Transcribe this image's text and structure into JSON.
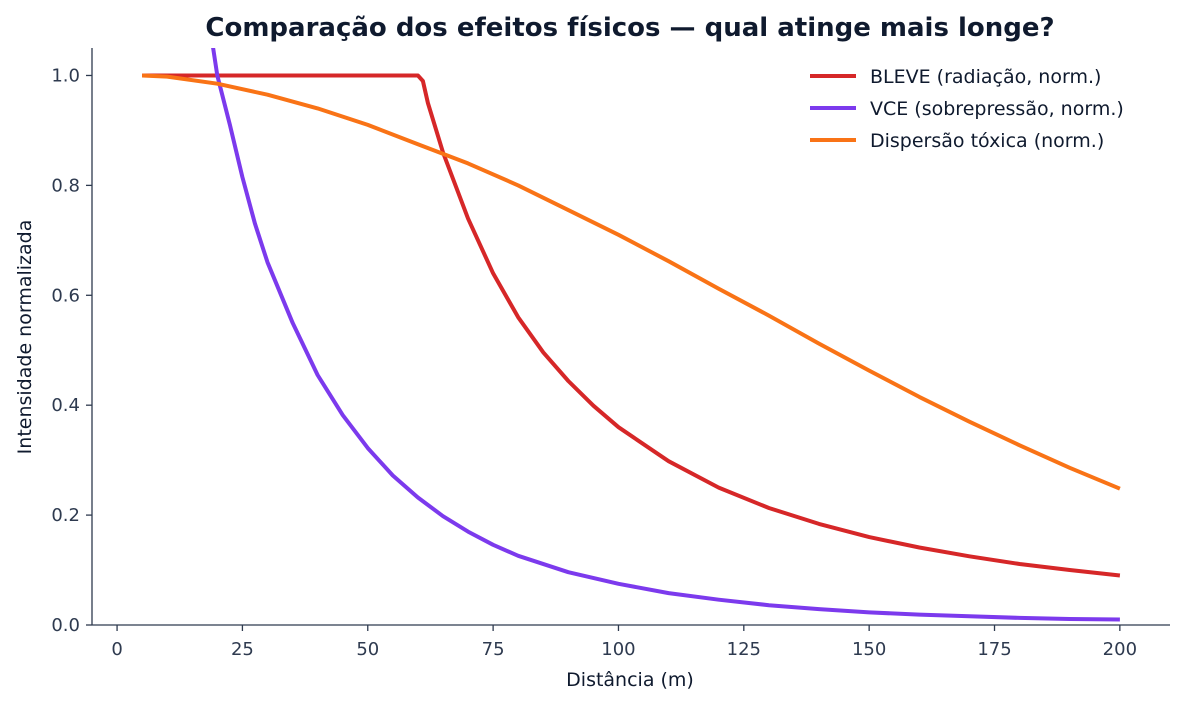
{
  "chart_data": {
    "type": "line",
    "title": "Comparação dos efeitos físicos — qual atinge mais longe?",
    "xlabel": "Distância (m)",
    "ylabel": "Intensidade normalizada",
    "xlim": [
      -5,
      210
    ],
    "ylim": [
      0,
      1.05
    ],
    "xticks": [
      0,
      25,
      50,
      75,
      100,
      125,
      150,
      175,
      200
    ],
    "yticks": [
      0.0,
      0.2,
      0.4,
      0.6,
      0.8,
      1.0
    ],
    "xtick_labels": [
      "0",
      "25",
      "50",
      "75",
      "100",
      "125",
      "150",
      "175",
      "200"
    ],
    "ytick_labels": [
      "0.0",
      "0.2",
      "0.4",
      "0.6",
      "0.8",
      "1.0"
    ],
    "grid": false,
    "legend_position": "top-right",
    "series": [
      {
        "name": "BLEVE (radiação, norm.)",
        "color": "#d62728",
        "x": [
          5,
          10,
          20,
          30,
          40,
          50,
          55,
          59,
          60,
          61,
          62,
          65,
          70,
          75,
          80,
          85,
          90,
          95,
          100,
          110,
          120,
          130,
          140,
          150,
          160,
          170,
          180,
          190,
          200
        ],
        "y": [
          1.0,
          1.0,
          1.0,
          1.0,
          1.0,
          1.0,
          1.0,
          1.0,
          1.0,
          0.99,
          0.95,
          0.86,
          0.74,
          0.64,
          0.56,
          0.496,
          0.444,
          0.399,
          0.36,
          0.298,
          0.25,
          0.213,
          0.184,
          0.16,
          0.141,
          0.125,
          0.111,
          0.1,
          0.09
        ]
      },
      {
        "name": "VCE (sobrepressão, norm.)",
        "color": "#7c3aed",
        "x": [
          19,
          20,
          22.5,
          25,
          27.5,
          30,
          35,
          40,
          45,
          50,
          55,
          60,
          65,
          70,
          75,
          80,
          90,
          100,
          110,
          120,
          130,
          140,
          150,
          160,
          170,
          180,
          190,
          200
        ],
        "y": [
          1.06,
          1.0,
          0.91,
          0.815,
          0.73,
          0.66,
          0.55,
          0.455,
          0.382,
          0.322,
          0.272,
          0.232,
          0.198,
          0.17,
          0.146,
          0.126,
          0.096,
          0.075,
          0.058,
          0.046,
          0.036,
          0.029,
          0.023,
          0.019,
          0.016,
          0.013,
          0.011,
          0.01
        ]
      },
      {
        "name": "Dispersão tóxica (norm.)",
        "color": "#f97316",
        "x": [
          5,
          10,
          20,
          30,
          40,
          50,
          60,
          70,
          80,
          90,
          100,
          110,
          120,
          130,
          140,
          150,
          160,
          170,
          180,
          190,
          200
        ],
        "y": [
          1.0,
          0.998,
          0.985,
          0.965,
          0.94,
          0.91,
          0.875,
          0.84,
          0.8,
          0.755,
          0.71,
          0.662,
          0.612,
          0.563,
          0.512,
          0.463,
          0.415,
          0.37,
          0.327,
          0.286,
          0.248
        ]
      }
    ]
  }
}
